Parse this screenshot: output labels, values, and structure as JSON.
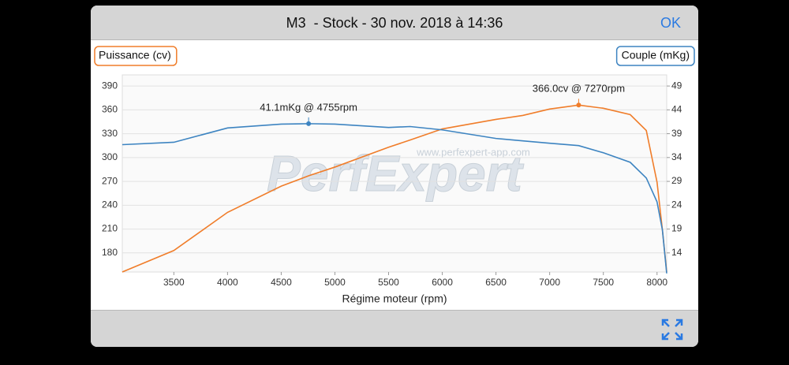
{
  "header": {
    "title": "M3  - Stock - 30 nov. 2018 à 14:36",
    "ok": "OK"
  },
  "watermark": {
    "logo": "PerfExpert",
    "url": "www.perfexpert-app.com"
  },
  "chart_data": {
    "type": "line",
    "x_label": "Régime moteur (rpm)",
    "x": [
      3020,
      3500,
      4000,
      4500,
      4755,
      5000,
      5500,
      5700,
      6000,
      6500,
      6750,
      7000,
      7270,
      7500,
      7750,
      7900,
      8000,
      8050,
      8090
    ],
    "series": [
      {
        "name": "Puissance (cv)",
        "color": "#f07d2a",
        "values": [
          156,
          183,
          231,
          264,
          277,
          288,
          313,
          322,
          336,
          348,
          353,
          361,
          366,
          362,
          354,
          334,
          269,
          209,
          156
        ]
      },
      {
        "name": "Couple (mKg)",
        "color": "#3d84c1",
        "axis": "y2",
        "values": [
          36.7,
          37.2,
          40.2,
          41.0,
          41.1,
          41.0,
          40.3,
          40.5,
          39.8,
          38.0,
          37.5,
          37.0,
          36.5,
          35.0,
          33.0,
          29.7,
          24.7,
          18.8,
          9.7
        ]
      }
    ],
    "xlim": [
      3020,
      8090
    ],
    "xticks": [
      3500,
      4000,
      4500,
      5000,
      5500,
      6000,
      6500,
      7000,
      7500,
      8000
    ],
    "ylim": [
      156,
      404
    ],
    "yticks": [
      180,
      210,
      240,
      270,
      300,
      330,
      360,
      390
    ],
    "y2lim": [
      10,
      51.33
    ],
    "y2ticks": [
      14,
      19,
      24,
      29,
      34,
      39,
      44,
      49
    ],
    "grid": true,
    "annotations": [
      {
        "text": "41.1mKg @ 4755rpm",
        "x": 4755,
        "y": 41.1,
        "axis": "y2",
        "color": "#3d84c1"
      },
      {
        "text": "366.0cv @ 7270rpm",
        "x": 7270,
        "y": 366,
        "axis": "y",
        "color": "#f07d2a"
      }
    ]
  }
}
